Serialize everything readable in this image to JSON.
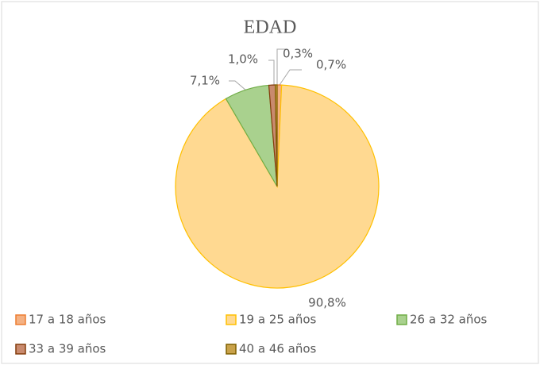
{
  "chart_data": {
    "type": "pie",
    "title": "EDAD",
    "categories": [
      "17 a 18 años",
      "19 a 25 años",
      "26 a 32 años",
      "33 a 39 años",
      "40 a 46 años"
    ],
    "values": [
      0.7,
      90.8,
      7.1,
      1.0,
      0.3
    ],
    "value_labels": [
      "0,7%",
      "90,8%",
      "7,1%",
      "1,0%",
      "0,3%"
    ],
    "colors": [
      "#f4b183",
      "#ffd991",
      "#a9d18e",
      "#c98a6e",
      "#c9a24a"
    ],
    "stroke_colors": [
      "#ed7d31",
      "#ffc000",
      "#70ad47",
      "#843c0c",
      "#7f6000"
    ],
    "legend": "bottom"
  }
}
